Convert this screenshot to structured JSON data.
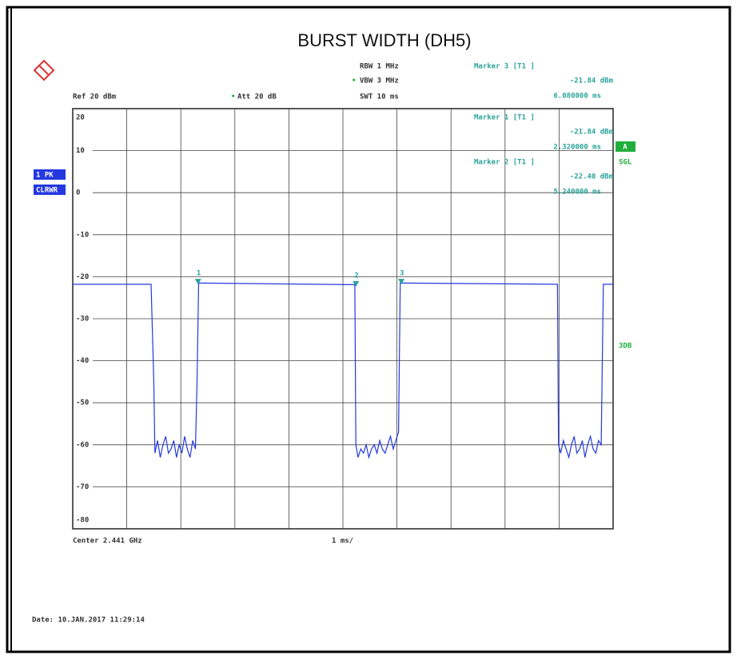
{
  "chart_data": {
    "type": "line",
    "title": "BURST WIDTH (DH5)",
    "settings": {
      "rbw": "RBW 1 MHz",
      "vbw": "VBW 3 MHz",
      "swt": "SWT 10 ms",
      "ref": "Ref 20 dBm",
      "att": "Att 20 dB",
      "trace": "1 PK",
      "mode": "CLRWR",
      "a": "A",
      "sgl": "SGL",
      "db": "3DB",
      "center": "Center 2.441 GHz",
      "span": "1 ms/",
      "date": "Date: 10.JAN.2017  11:29:14"
    },
    "xlim": [
      0,
      10
    ],
    "xticks": [
      0,
      1,
      2,
      3,
      4,
      5,
      6,
      7,
      8,
      9,
      10
    ],
    "ylim": [
      -80,
      20
    ],
    "yticks": [
      20,
      10,
      0,
      -10,
      -20,
      -30,
      -40,
      -50,
      -60,
      -70,
      -80
    ],
    "color": "#2438e0",
    "x": [
      0,
      1.45,
      1.5,
      1.52,
      1.57,
      1.62,
      1.67,
      1.72,
      1.77,
      1.82,
      1.87,
      1.92,
      1.97,
      2.02,
      2.07,
      2.12,
      2.17,
      2.22,
      2.27,
      2.3,
      2.33,
      5.22,
      5.24,
      5.28,
      5.33,
      5.38,
      5.43,
      5.48,
      5.53,
      5.58,
      5.63,
      5.68,
      5.73,
      5.78,
      5.83,
      5.88,
      5.93,
      5.98,
      6.03,
      6.06,
      8.97,
      8.99,
      9.03,
      9.08,
      9.13,
      9.18,
      9.23,
      9.28,
      9.33,
      9.38,
      9.43,
      9.48,
      9.53,
      9.58,
      9.63,
      9.68,
      9.73,
      9.78,
      9.8,
      9.82,
      10
    ],
    "values": [
      -21.8,
      -21.8,
      -45,
      -62,
      -59,
      -63,
      -60,
      -58,
      -62,
      -61,
      -59,
      -63,
      -60,
      -62,
      -58,
      -61,
      -63,
      -59,
      -61,
      -45,
      -21.5,
      -21.9,
      -60,
      -63,
      -61,
      -62,
      -60,
      -63,
      -61,
      -60,
      -62,
      -59,
      -61,
      -62,
      -60,
      -58,
      -61,
      -59,
      -57,
      -21.5,
      -21.8,
      -60,
      -62,
      -59,
      -61,
      -63,
      -60,
      -58,
      -62,
      -61,
      -59,
      -63,
      -60,
      -58,
      -61,
      -62,
      -59,
      -60,
      -40,
      -21.8,
      -21.8
    ],
    "markers": [
      {
        "label": "1",
        "x": 2.32,
        "y": -21.84,
        "title": "Marker 1 [T1 ]",
        "level_label": "-21.84 dBm",
        "time_label": "2.320000 ms"
      },
      {
        "label": "2",
        "x": 5.24,
        "y": -22.4,
        "title": "Marker 2 [T1 ]",
        "level_label": "-22.40 dBm",
        "time_label": "5.240000 ms"
      },
      {
        "label": "3",
        "x": 6.08,
        "y": -21.84,
        "title": "Marker 3 [T1 ]",
        "level_label": "-21.84 dBm",
        "time_label": "6.080000 ms"
      }
    ]
  }
}
